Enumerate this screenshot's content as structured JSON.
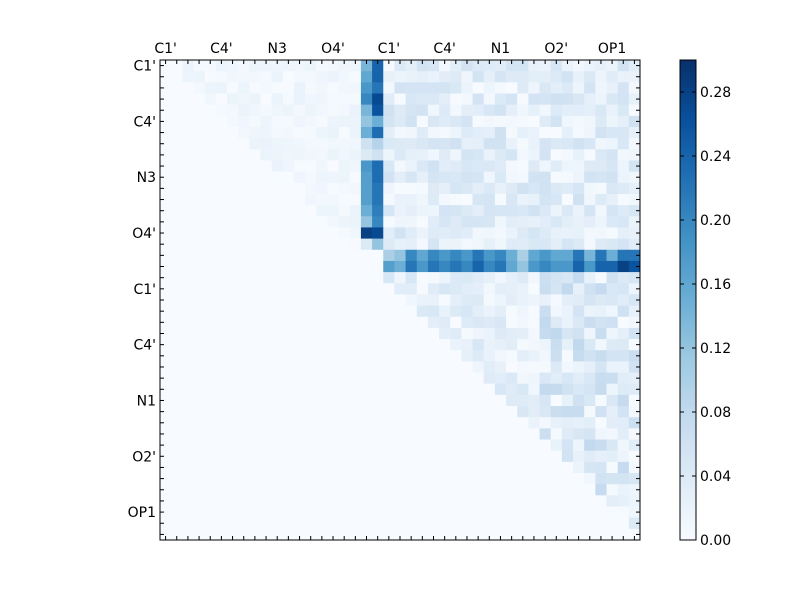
{
  "chart_data": {
    "type": "heatmap",
    "title": "",
    "xlabel": "",
    "ylabel": "",
    "n_rows": 43,
    "n_cols": 43,
    "x_tick_labels": [
      "C1'",
      "C4'",
      "N3",
      "O4'",
      "C1'",
      "C4'",
      "N1",
      "O2'",
      "OP1"
    ],
    "y_tick_labels": [
      "C1'",
      "C4'",
      "N3",
      "O4'",
      "C1'",
      "C4'",
      "N1",
      "O2'",
      "OP1"
    ],
    "tick_label_indices": [
      0,
      5,
      10,
      15,
      20,
      25,
      30,
      35,
      40
    ],
    "colormap": "Blues",
    "color_low": "#f7fbff",
    "color_high": "#08306b",
    "vmin": 0.0,
    "vmax": 0.3,
    "colorbar_ticks": [
      "0.00",
      "0.04",
      "0.08",
      "0.12",
      "0.16",
      "0.20",
      "0.24",
      "0.28"
    ],
    "colorbar_tick_values": [
      0.0,
      0.04,
      0.08,
      0.12,
      0.16,
      0.2,
      0.24,
      0.28
    ],
    "strong_column_18": [
      {
        "row": 0,
        "value": 0.14
      },
      {
        "row": 1,
        "value": 0.16
      },
      {
        "row": 2,
        "value": 0.18
      },
      {
        "row": 3,
        "value": 0.2
      },
      {
        "row": 4,
        "value": 0.14
      },
      {
        "row": 5,
        "value": 0.12
      },
      {
        "row": 6,
        "value": 0.15
      },
      {
        "row": 7,
        "value": 0.06
      },
      {
        "row": 8,
        "value": 0.04
      },
      {
        "row": 9,
        "value": 0.18
      },
      {
        "row": 10,
        "value": 0.17
      },
      {
        "row": 11,
        "value": 0.17
      },
      {
        "row": 12,
        "value": 0.17
      },
      {
        "row": 13,
        "value": 0.15
      },
      {
        "row": 14,
        "value": 0.12
      },
      {
        "row": 15,
        "value": 0.28
      },
      {
        "row": 16,
        "value": 0.04
      }
    ],
    "strong_column_19": [
      {
        "row": 0,
        "value": 0.24
      },
      {
        "row": 1,
        "value": 0.24
      },
      {
        "row": 2,
        "value": 0.22
      },
      {
        "row": 3,
        "value": 0.27
      },
      {
        "row": 4,
        "value": 0.26
      },
      {
        "row": 5,
        "value": 0.15
      },
      {
        "row": 6,
        "value": 0.23
      },
      {
        "row": 7,
        "value": 0.09
      },
      {
        "row": 8,
        "value": 0.06
      },
      {
        "row": 9,
        "value": 0.23
      },
      {
        "row": 10,
        "value": 0.23
      },
      {
        "row": 11,
        "value": 0.22
      },
      {
        "row": 12,
        "value": 0.22
      },
      {
        "row": 13,
        "value": 0.21
      },
      {
        "row": 14,
        "value": 0.2
      },
      {
        "row": 15,
        "value": 0.27
      },
      {
        "row": 16,
        "value": 0.12
      }
    ],
    "strong_row_17": [
      {
        "col": 20,
        "value": 0.1
      },
      {
        "col": 21,
        "value": 0.12
      },
      {
        "col": 22,
        "value": 0.2
      },
      {
        "col": 23,
        "value": 0.16
      },
      {
        "col": 24,
        "value": 0.2
      },
      {
        "col": 25,
        "value": 0.18
      },
      {
        "col": 26,
        "value": 0.2
      },
      {
        "col": 27,
        "value": 0.18
      },
      {
        "col": 28,
        "value": 0.22
      },
      {
        "col": 29,
        "value": 0.18
      },
      {
        "col": 30,
        "value": 0.2
      },
      {
        "col": 31,
        "value": 0.15
      },
      {
        "col": 32,
        "value": 0.1
      },
      {
        "col": 33,
        "value": 0.16
      },
      {
        "col": 34,
        "value": 0.18
      },
      {
        "col": 35,
        "value": 0.16
      },
      {
        "col": 36,
        "value": 0.16
      },
      {
        "col": 37,
        "value": 0.22
      },
      {
        "col": 38,
        "value": 0.14
      },
      {
        "col": 39,
        "value": 0.22
      },
      {
        "col": 40,
        "value": 0.15
      },
      {
        "col": 41,
        "value": 0.22
      },
      {
        "col": 42,
        "value": 0.22
      }
    ],
    "strong_row_18": [
      {
        "col": 20,
        "value": 0.17
      },
      {
        "col": 21,
        "value": 0.15
      },
      {
        "col": 22,
        "value": 0.22
      },
      {
        "col": 23,
        "value": 0.18
      },
      {
        "col": 24,
        "value": 0.22
      },
      {
        "col": 25,
        "value": 0.2
      },
      {
        "col": 26,
        "value": 0.22
      },
      {
        "col": 27,
        "value": 0.2
      },
      {
        "col": 28,
        "value": 0.24
      },
      {
        "col": 29,
        "value": 0.2
      },
      {
        "col": 30,
        "value": 0.22
      },
      {
        "col": 31,
        "value": 0.16
      },
      {
        "col": 32,
        "value": 0.12
      },
      {
        "col": 33,
        "value": 0.18
      },
      {
        "col": 34,
        "value": 0.2
      },
      {
        "col": 35,
        "value": 0.18
      },
      {
        "col": 36,
        "value": 0.18
      },
      {
        "col": 37,
        "value": 0.24
      },
      {
        "col": 38,
        "value": 0.18
      },
      {
        "col": 39,
        "value": 0.24
      },
      {
        "col": 40,
        "value": 0.24
      },
      {
        "col": 41,
        "value": 0.28
      },
      {
        "col": 42,
        "value": 0.26
      }
    ],
    "notes_values": {
      "upper_left_region_max": 0.02,
      "upper_right_region_range": [
        0.0,
        0.06
      ],
      "lower_right_region_range": [
        0.0,
        0.08
      ],
      "lower_left_region": 0.0
    }
  }
}
